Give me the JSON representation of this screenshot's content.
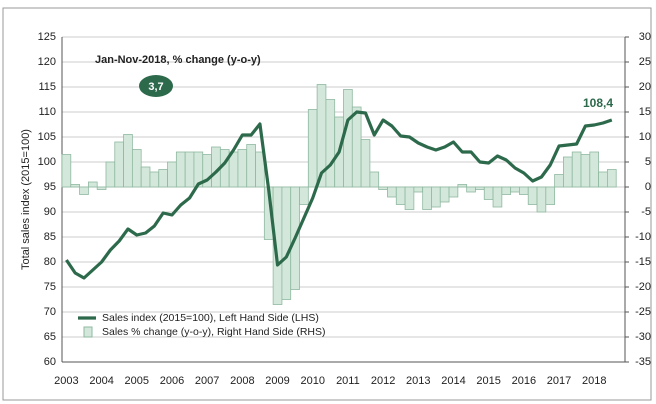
{
  "chart_data": {
    "type": "bar_line",
    "y_label": "Total sales  index (2015=100)",
    "annotations": {
      "period_note": "Jan-Nov-2018, % change (y-o-y)",
      "bubble": "3,7",
      "end_label": "108,4"
    },
    "categories": [
      "2003",
      null,
      null,
      null,
      "2004",
      null,
      null,
      null,
      "2005",
      null,
      null,
      null,
      "2006",
      null,
      null,
      null,
      "2007",
      null,
      null,
      null,
      "2008",
      null,
      null,
      null,
      "2009",
      null,
      null,
      null,
      "2010",
      null,
      null,
      null,
      "2011",
      null,
      null,
      null,
      "2012",
      null,
      null,
      null,
      "2013",
      null,
      null,
      null,
      "2014",
      null,
      null,
      null,
      "2015",
      null,
      null,
      null,
      "2016",
      null,
      null,
      null,
      "2017",
      null,
      null,
      null,
      "2018",
      null,
      null
    ],
    "series": [
      {
        "name": "Sales % change (y-o-y), Right Hand Side (RHS)",
        "kind": "bar",
        "axis": "y2",
        "color": "#d3e8da",
        "values": [
          6.5,
          0.5,
          -1.5,
          1,
          -0.5,
          5,
          9,
          10.5,
          7.5,
          4,
          3,
          3.5,
          5,
          7,
          7,
          7,
          6.5,
          8,
          7.5,
          7,
          7.5,
          8.5,
          7,
          -10.5,
          -23.5,
          -22.5,
          -20.5,
          -3.5,
          15.5,
          20.5,
          17.5,
          14,
          19.5,
          16,
          9.5,
          3,
          -0.5,
          -2,
          -3.5,
          -4.5,
          -1,
          -4.5,
          -4,
          -3,
          -2,
          0.5,
          -1,
          -0.5,
          -2.5,
          -4,
          -1.5,
          -1,
          -1.5,
          -3.5,
          -5,
          -3.5,
          2.5,
          6,
          7,
          6.5,
          7,
          3,
          3.5
        ]
      },
      {
        "name": "Sales index (2015=100), Left Hand Side (LHS)",
        "kind": "line",
        "axis": "y",
        "color": "#2d6a4c",
        "values": [
          80.4,
          77.8,
          76.8,
          78.4,
          80,
          82.4,
          84.2,
          86.6,
          85.4,
          85.8,
          87.2,
          89.8,
          89.4,
          91.4,
          92.8,
          95.6,
          96.4,
          98,
          99.8,
          102.4,
          105.4,
          105.4,
          107.6,
          94.4,
          79.4,
          81,
          84.8,
          88.8,
          92.8,
          97.8,
          99.4,
          102,
          108.4,
          110,
          109.8,
          105.4,
          108.4,
          107.2,
          105.2,
          105,
          103.8,
          103,
          102.4,
          103,
          104,
          102,
          102,
          100,
          99.8,
          101.2,
          100.4,
          98.8,
          97.8,
          96.2,
          97,
          99.4,
          103.2,
          103.4,
          103.6,
          107.2,
          107.4,
          107.8,
          108.4
        ]
      }
    ],
    "ylim": [
      60,
      125
    ],
    "yticks": [
      60,
      65,
      70,
      75,
      80,
      85,
      90,
      95,
      100,
      105,
      110,
      115,
      120,
      125
    ],
    "y2lim": [
      -35,
      30
    ],
    "y2ticks": [
      -35,
      -30,
      -25,
      -20,
      -15,
      -10,
      -5,
      0,
      5,
      10,
      15,
      20,
      25,
      30
    ]
  }
}
